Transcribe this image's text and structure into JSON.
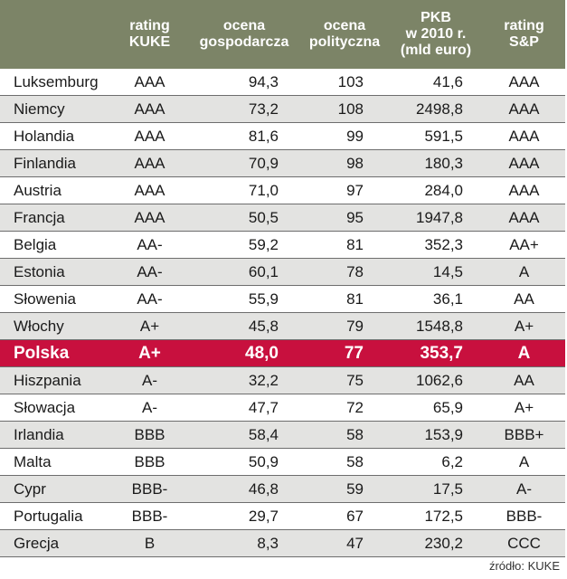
{
  "headers": {
    "country": "",
    "rating_kuke": "rating\nKUKE",
    "ocena_gosp": "ocena\ngospodarcza",
    "ocena_pol": "ocena\npolityczna",
    "pkb": "PKB\nw 2010 r.\n(mld euro)",
    "rating_sp": "rating\nS&P"
  },
  "rows": [
    {
      "country": "Luksemburg",
      "kuke": "AAA",
      "gosp": "94,3",
      "pol": "103",
      "pkb": "41,6",
      "sp": "AAA"
    },
    {
      "country": "Niemcy",
      "kuke": "AAA",
      "gosp": "73,2",
      "pol": "108",
      "pkb": "2498,8",
      "sp": "AAA"
    },
    {
      "country": "Holandia",
      "kuke": "AAA",
      "gosp": "81,6",
      "pol": "99",
      "pkb": "591,5",
      "sp": "AAA"
    },
    {
      "country": "Finlandia",
      "kuke": "AAA",
      "gosp": "70,9",
      "pol": "98",
      "pkb": "180,3",
      "sp": "AAA"
    },
    {
      "country": "Austria",
      "kuke": "AAA",
      "gosp": "71,0",
      "pol": "97",
      "pkb": "284,0",
      "sp": "AAA"
    },
    {
      "country": "Francja",
      "kuke": "AAA",
      "gosp": "50,5",
      "pol": "95",
      "pkb": "1947,8",
      "sp": "AAA"
    },
    {
      "country": "Belgia",
      "kuke": "AA-",
      "gosp": "59,2",
      "pol": "81",
      "pkb": "352,3",
      "sp": "AA+"
    },
    {
      "country": "Estonia",
      "kuke": "AA-",
      "gosp": "60,1",
      "pol": "78",
      "pkb": "14,5",
      "sp": "A"
    },
    {
      "country": "Słowenia",
      "kuke": "AA-",
      "gosp": "55,9",
      "pol": "81",
      "pkb": "36,1",
      "sp": "AA"
    },
    {
      "country": "Włochy",
      "kuke": "A+",
      "gosp": "45,8",
      "pol": "79",
      "pkb": "1548,8",
      "sp": "A+"
    },
    {
      "country": "Polska",
      "kuke": "A+",
      "gosp": "48,0",
      "pol": "77",
      "pkb": "353,7",
      "sp": "A",
      "highlight": true
    },
    {
      "country": "Hiszpania",
      "kuke": "A-",
      "gosp": "32,2",
      "pol": "75",
      "pkb": "1062,6",
      "sp": "AA"
    },
    {
      "country": "Słowacja",
      "kuke": "A-",
      "gosp": "47,7",
      "pol": "72",
      "pkb": "65,9",
      "sp": "A+"
    },
    {
      "country": "Irlandia",
      "kuke": "BBB",
      "gosp": "58,4",
      "pol": "58",
      "pkb": "153,9",
      "sp": "BBB+"
    },
    {
      "country": "Malta",
      "kuke": "BBB",
      "gosp": "50,9",
      "pol": "58",
      "pkb": "6,2",
      "sp": "A"
    },
    {
      "country": "Cypr",
      "kuke": "BBB-",
      "gosp": "46,8",
      "pol": "59",
      "pkb": "17,5",
      "sp": "A-"
    },
    {
      "country": "Portugalia",
      "kuke": "BBB-",
      "gosp": "29,7",
      "pol": "67",
      "pkb": "172,5",
      "sp": "BBB-"
    },
    {
      "country": "Grecja",
      "kuke": "B",
      "gosp": "8,3",
      "pol": "47",
      "pkb": "230,2",
      "sp": "CCC"
    }
  ],
  "colors": {
    "header_bg": "#7c8467",
    "highlight_bg": "#c8103e",
    "stripe_bg": "#e3e3e1"
  },
  "source": "źródło: KUKE"
}
